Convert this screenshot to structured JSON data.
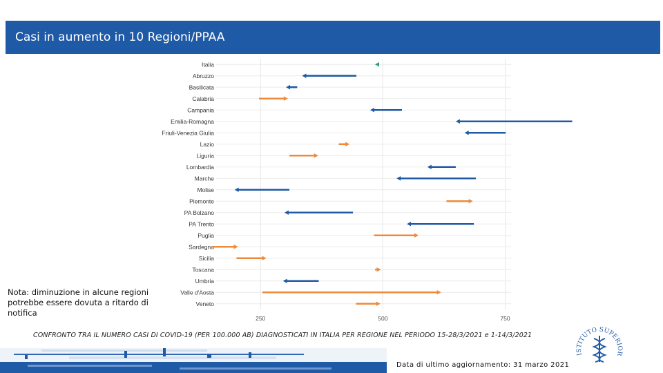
{
  "header": {
    "title": "Casi in aumento in 10 Regioni/PPAA"
  },
  "note": {
    "text": "Nota: diminuzione in alcune regioni potrebbe essere dovuta a ritardo di notifica"
  },
  "caption": {
    "text": "CONFRONTO TRA IL NUMERO CASI DI COVID-19 (PER 100.000 AB) DIAGNOSTICATI IN ITALIA PER REGIONE NEL PERIODO 15-28/3/2021 e 1-14/3/2021"
  },
  "update": {
    "text": "Data di ultimo aggiornamento: 31 marzo 2021"
  },
  "logo": {
    "text": "ISTITUTO SUPERIORE DI SANITÀ"
  },
  "colors": {
    "header": "#1f5aa6",
    "decrease": "#1f5aa6",
    "increase": "#ee8a3a",
    "italy": "#2a9d7a"
  },
  "chart_data": {
    "type": "dumbbell-arrow",
    "title": "",
    "xlabel": "",
    "ylabel": "",
    "xlim": [
      158,
      762
    ],
    "xticks": [
      250,
      500,
      750
    ],
    "xtick_labels": [
      "250",
      "500",
      "750"
    ],
    "grid": true,
    "categories": [
      "Italia",
      "Abruzzo",
      "Basilicata",
      "Calabria",
      "Campania",
      "Emilia-Romagna",
      "Friuli-Venezia Giulia",
      "Lazio",
      "Liguria",
      "Lombardia",
      "Marche",
      "Molise",
      "Piemonte",
      "PA Bolzano",
      "PA Trento",
      "Puglia",
      "Sardegna",
      "Sicilia",
      "Toscana",
      "Umbria",
      "Valle d'Aosta",
      "Veneto"
    ],
    "series": [
      {
        "name": "1-14/3/2021",
        "values": [
          492,
          446,
          325,
          247,
          539,
          887,
          751,
          410,
          309,
          649,
          690,
          309,
          630,
          439,
          686,
          482,
          150,
          201,
          484,
          369,
          254,
          445
        ]
      },
      {
        "name": "15-28/3/2021",
        "values": [
          484,
          335,
          302,
          306,
          474,
          649,
          667,
          432,
          368,
          591,
          528,
          197,
          684,
          299,
          549,
          573,
          204,
          262,
          496,
          296,
          619,
          495
        ]
      }
    ]
  }
}
